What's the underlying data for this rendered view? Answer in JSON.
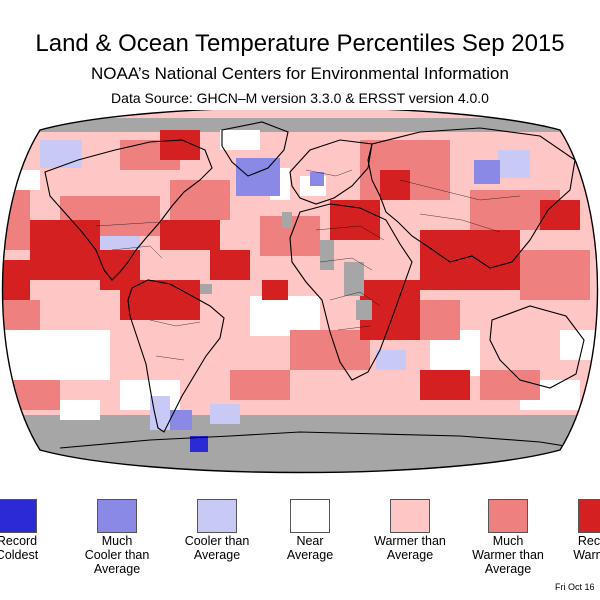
{
  "header": {
    "title": "Land & Ocean Temperature Percentiles Sep 2015",
    "subtitle": "NOAA’s National Centers for Environmental Information",
    "source": "Data Source: GHCN–M version 3.3.0 & ERSST version 4.0.0"
  },
  "colors": {
    "ocean_gray": "#a6a6a6",
    "record_coldest": "#2b2bd6",
    "much_cooler": "#8a8ae6",
    "cooler": "#c9c9f6",
    "near": "#ffffff",
    "warmer": "#ffc6c6",
    "much_warmer": "#ef8080",
    "record_warmest": "#d42020"
  },
  "legend": [
    {
      "lines": [
        "Record",
        "Coldest"
      ],
      "color": "#2b2bd6"
    },
    {
      "lines": [
        "Much",
        "Cooler than",
        "Average"
      ],
      "color": "#8a8ae6"
    },
    {
      "lines": [
        "Cooler than",
        "Average"
      ],
      "color": "#c9c9f6"
    },
    {
      "lines": [
        "Near",
        "Average"
      ],
      "color": "#ffffff"
    },
    {
      "lines": [
        "Warmer than",
        "Average"
      ],
      "color": "#ffc6c6"
    },
    {
      "lines": [
        "Much",
        "Warmer than",
        "Average"
      ],
      "color": "#ef8080"
    },
    {
      "lines": [
        "Record",
        "Warmest"
      ],
      "color": "#d42020"
    }
  ],
  "footer": {
    "date": "Fri Oct 16"
  }
}
